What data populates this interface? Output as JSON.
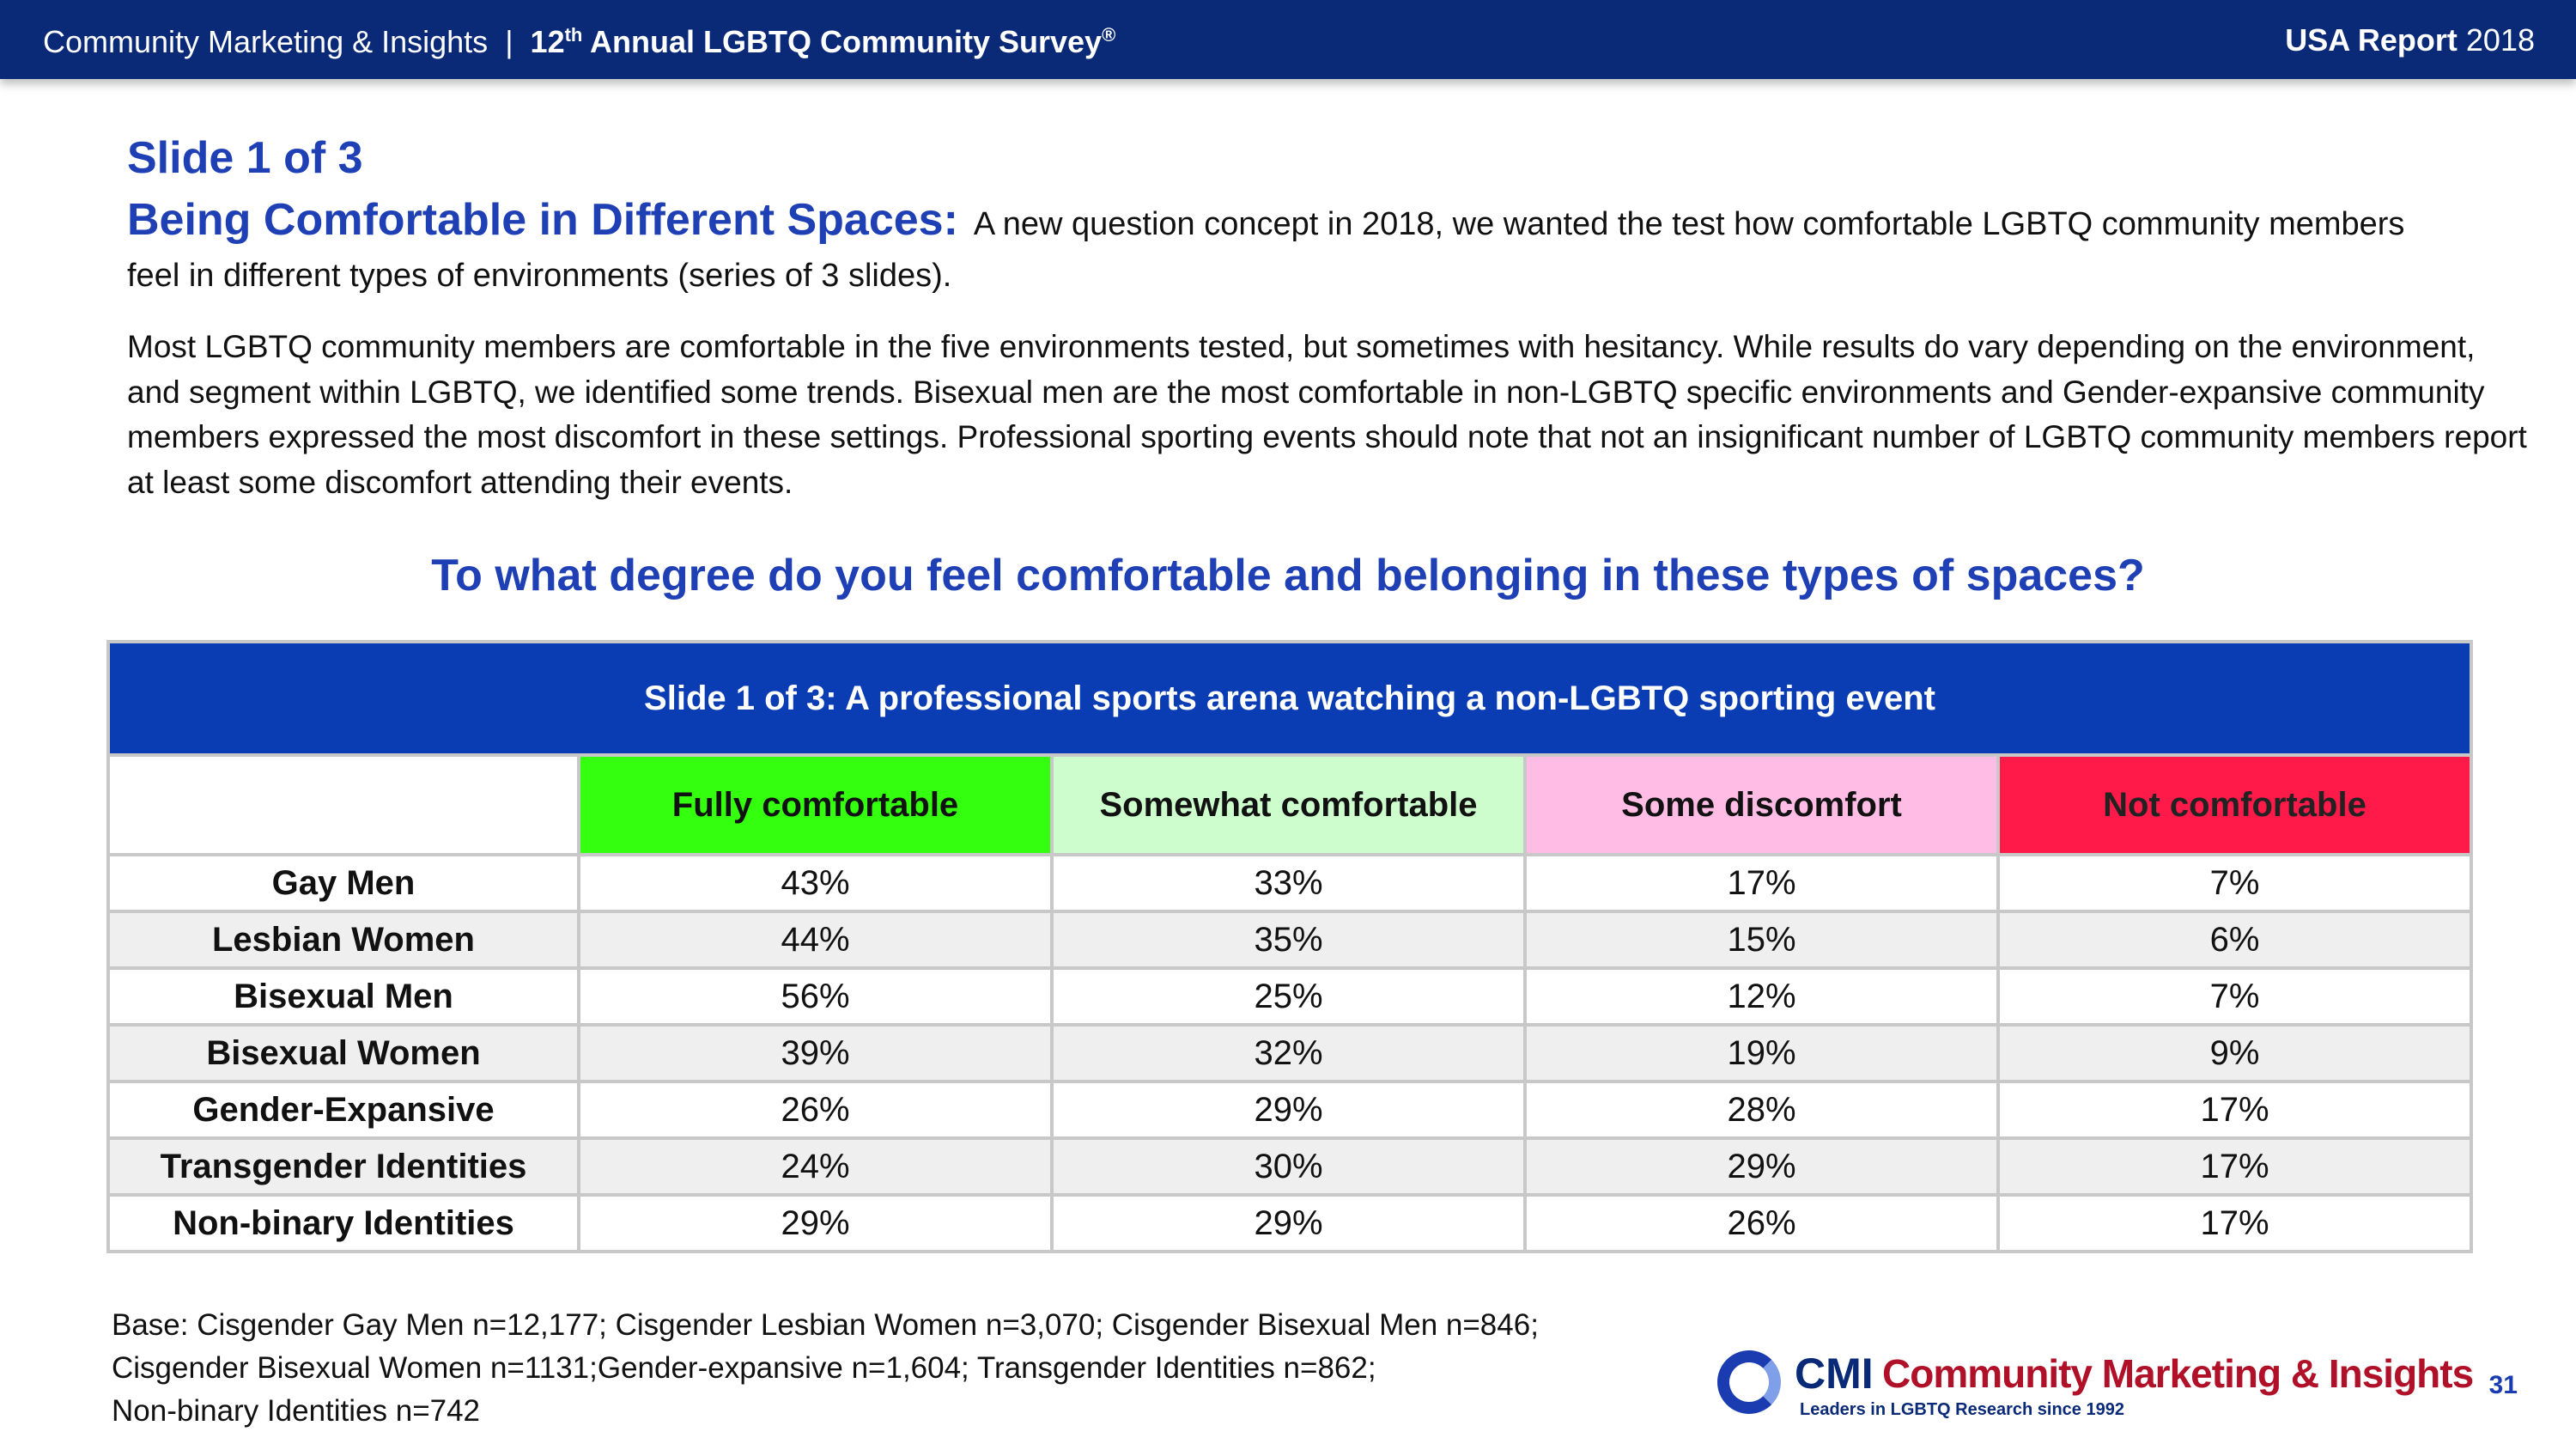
{
  "header": {
    "org": "Community Marketing & Insights",
    "separator": "|",
    "survey_prefix": "12",
    "survey_sup": "th",
    "survey_title": " Annual LGBTQ Community Survey",
    "survey_mark": "®",
    "report_label": "USA Report",
    "report_year": "2018"
  },
  "slide_label": "Slide 1 of 3",
  "intro": {
    "subtitle": "Being Comfortable in Different Spaces:",
    "text": "A new question concept in 2018, we wanted the test how comfortable LGBTQ community members feel in different types of environments (series of 3 slides)."
  },
  "body_text": "Most LGBTQ community members are comfortable in the five environments tested, but sometimes with hesitancy. While results do vary depending on the environment, and segment within LGBTQ, we identified some trends. Bisexual men are the most comfortable in non-LGBTQ specific environments and Gender-expansive community members expressed the most discomfort in these settings. Professional sporting events should note that not an insignificant number of LGBTQ community members report at least some discomfort attending their events.",
  "question": "To what degree do you feel comfortable and belonging in these types of spaces?",
  "table": {
    "title": "Slide 1 of 3: A professional sports arena watching a non-LGBTQ sporting event",
    "columns": [
      "Fully comfortable",
      "Somewhat comfortable",
      "Some discomfort",
      "Not comfortable"
    ],
    "column_colors": [
      "#33ff0f",
      "#cdfccd",
      "#ffbde6",
      "#ff1a4a"
    ],
    "rows": [
      {
        "label": "Gay Men",
        "values": [
          "43%",
          "33%",
          "17%",
          "7%"
        ]
      },
      {
        "label": "Lesbian Women",
        "values": [
          "44%",
          "35%",
          "15%",
          "6%"
        ]
      },
      {
        "label": "Bisexual Men",
        "values": [
          "56%",
          "25%",
          "12%",
          "7%"
        ]
      },
      {
        "label": "Bisexual Women",
        "values": [
          "39%",
          "32%",
          "19%",
          "9%"
        ]
      },
      {
        "label": "Gender-Expansive",
        "values": [
          "26%",
          "29%",
          "28%",
          "17%"
        ]
      },
      {
        "label": "Transgender Identities",
        "values": [
          "24%",
          "30%",
          "29%",
          "17%"
        ]
      },
      {
        "label": "Non-binary Identities",
        "values": [
          "29%",
          "29%",
          "26%",
          "17%"
        ]
      }
    ]
  },
  "base_note": [
    "Base: Cisgender Gay Men n=12,177; Cisgender Lesbian Women n=3,070; Cisgender Bisexual Men n=846;",
    "Cisgender Bisexual Women n=1131;Gender-expansive n=1,604; Transgender Identities n=862;",
    "Non-binary Identities n=742"
  ],
  "logo": {
    "icon": "cmi-ring-logo-icon",
    "abbr": "CMI",
    "name": "Community Marketing & Insights",
    "tagline": "Leaders in LGBTQ Research since 1992"
  },
  "page_number": "31"
}
